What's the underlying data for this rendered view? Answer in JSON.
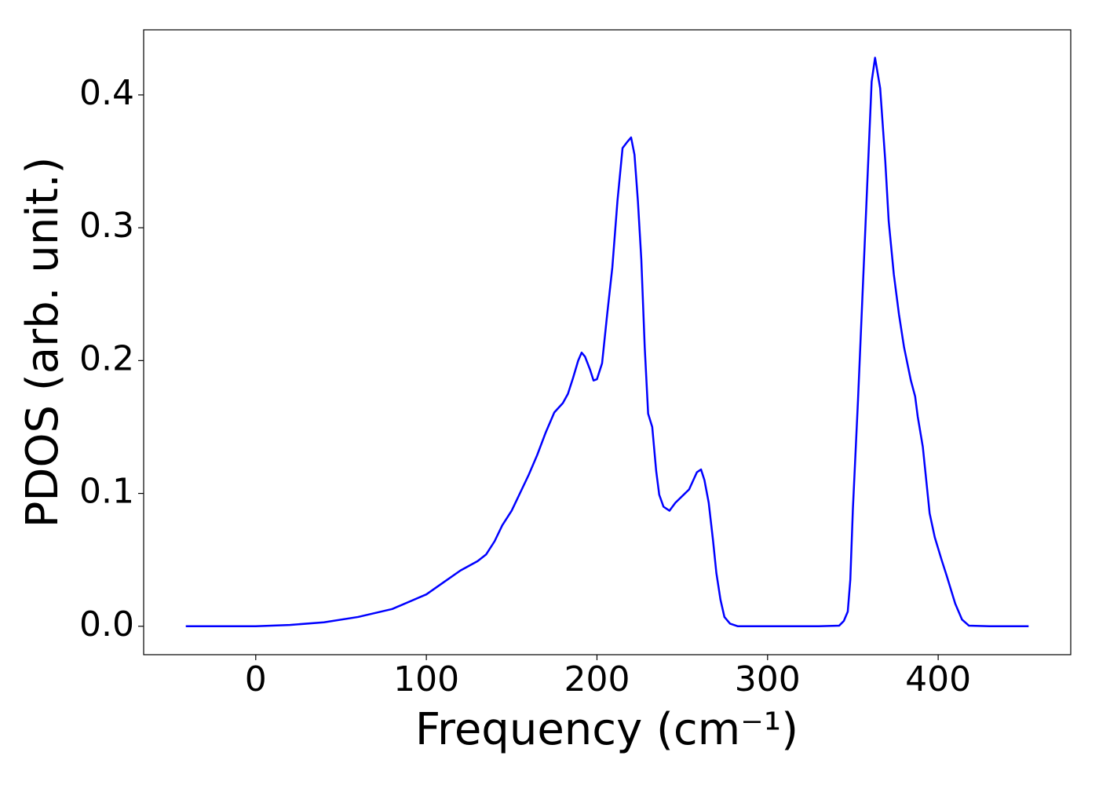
{
  "chart_data": {
    "type": "line",
    "x_label": "Frequency (cm⁻¹)",
    "y_label": "PDOS (arb. unit.)",
    "x": [
      -41,
      0,
      20,
      40,
      60,
      80,
      100,
      110,
      120,
      130,
      135,
      140,
      144.5,
      150,
      160,
      165,
      170,
      175,
      180,
      183,
      186,
      189,
      191,
      193,
      196,
      198,
      200,
      203,
      206,
      209,
      212,
      215,
      218,
      220,
      222,
      224,
      226,
      228,
      230,
      232.4,
      234.7,
      236.5,
      239,
      242.5,
      246,
      250,
      254,
      258.6,
      261,
      263,
      265.5,
      268,
      270,
      272.4,
      274.7,
      278,
      282.6,
      300,
      330,
      342,
      344.7,
      347,
      348.5,
      350,
      353,
      356,
      359,
      361,
      363,
      366,
      369,
      371,
      374,
      377,
      380,
      384,
      386.5,
      388,
      391,
      395,
      398,
      402,
      405,
      410,
      414,
      418,
      430,
      453
    ],
    "series": [
      {
        "name": "PDOS",
        "color": "#0000ff",
        "values": [
          0,
          0,
          0.001,
          0.003,
          0.007,
          0.013,
          0.024,
          0.033,
          0.042,
          0.049,
          0.054,
          0.064,
          0.076,
          0.087,
          0.114,
          0.129,
          0.146,
          0.161,
          0.168,
          0.175,
          0.187,
          0.2,
          0.206,
          0.203,
          0.193,
          0.185,
          0.186,
          0.198,
          0.235,
          0.27,
          0.32,
          0.36,
          0.365,
          0.368,
          0.355,
          0.32,
          0.276,
          0.21,
          0.16,
          0.15,
          0.117,
          0.099,
          0.09,
          0.087,
          0.093,
          0.098,
          0.103,
          0.116,
          0.118,
          0.11,
          0.093,
          0.065,
          0.04,
          0.02,
          0.007,
          0.002,
          0,
          0,
          0,
          0.0005,
          0.004,
          0.011,
          0.035,
          0.088,
          0.17,
          0.26,
          0.35,
          0.41,
          0.428,
          0.405,
          0.35,
          0.305,
          0.265,
          0.235,
          0.21,
          0.185,
          0.173,
          0.158,
          0.135,
          0.085,
          0.067,
          0.05,
          0.038,
          0.017,
          0.005,
          0.0005,
          0,
          0
        ]
      }
    ],
    "xlim": [
      -65.7,
      477.7
    ],
    "xticks": [
      0,
      100,
      200,
      300,
      400
    ],
    "ylim": [
      -0.0214,
      0.449
    ],
    "yticks": [
      {
        "value": 0,
        "label": "0.0"
      },
      0.1,
      0.2,
      0.3,
      0.4
    ],
    "grid": false
  }
}
